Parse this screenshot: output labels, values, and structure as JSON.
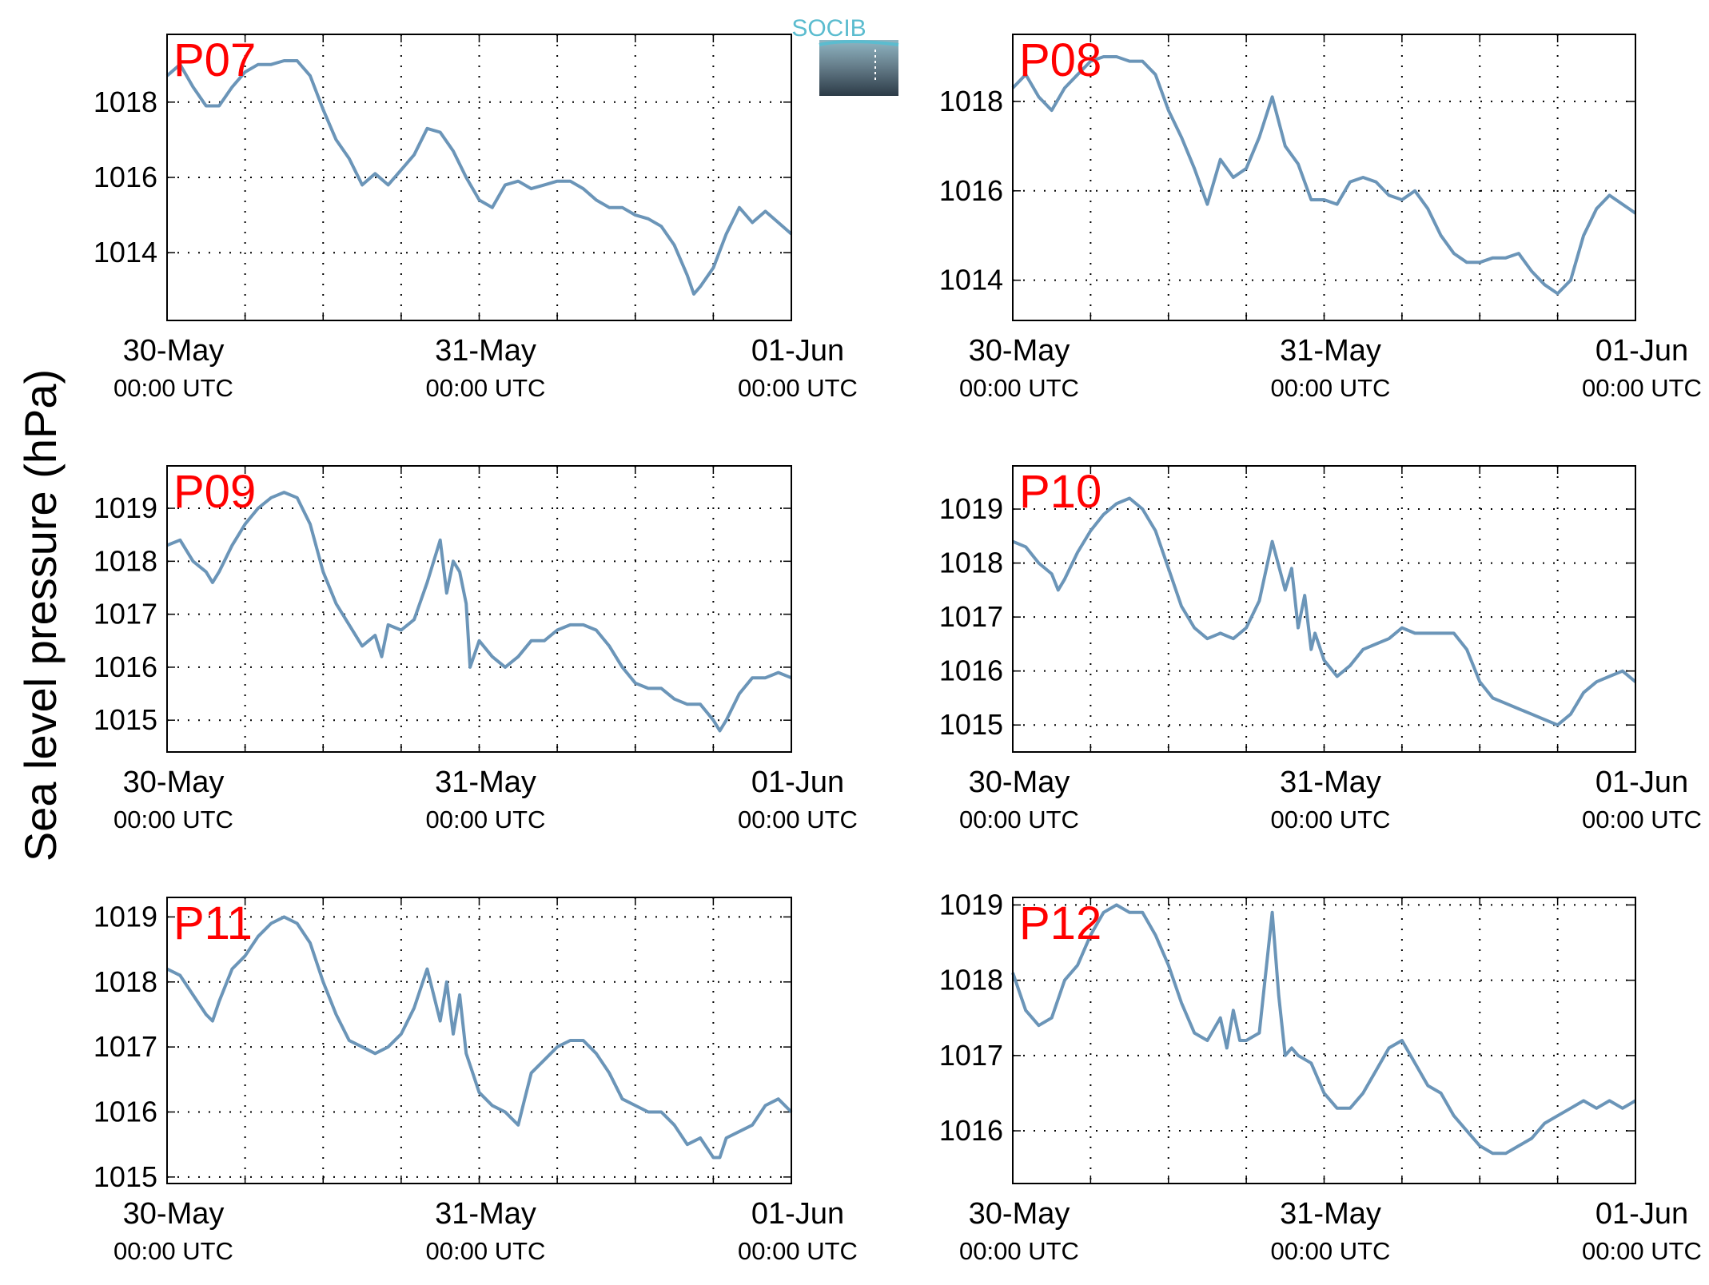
{
  "figure": {
    "ylabel": "Sea level pressure (hPa)",
    "logo_text": "SOCIB",
    "logo_color": "#5bbccf",
    "line_color": "#6b95b8",
    "label_color": "#ff0000"
  },
  "chart_data": [
    {
      "type": "line",
      "panel": "P07",
      "xlabel": "",
      "ylabel": "Sea level pressure (hPa)",
      "x_ticks": [
        {
          "date": "30-May",
          "time": "00:00 UTC"
        },
        {
          "date": "31-May",
          "time": "00:00 UTC"
        },
        {
          "date": "01-Jun",
          "time": "00:00 UTC"
        }
      ],
      "xlim": [
        "2015-05-30 00:00",
        "2015-06-01 00:00"
      ],
      "ylim": [
        1012.2,
        1019.8
      ],
      "yticks": [
        1014,
        1016,
        1018
      ],
      "grid": true,
      "series": [
        {
          "x": [
            0,
            1,
            2,
            3,
            3.5,
            4,
            5,
            6,
            7,
            8,
            9,
            10,
            11,
            12,
            13,
            14,
            15,
            16,
            17,
            18,
            19,
            20,
            21,
            22,
            23,
            24,
            25,
            26,
            27,
            28,
            29,
            30,
            31,
            32,
            33,
            34,
            35,
            36,
            37,
            38,
            39,
            40,
            40.5,
            41,
            42,
            43,
            44,
            45,
            46,
            47,
            48
          ],
          "y": [
            1018.7,
            1019.0,
            1018.4,
            1017.9,
            1017.9,
            1017.9,
            1018.4,
            1018.8,
            1019.0,
            1019.0,
            1019.1,
            1019.1,
            1018.7,
            1017.8,
            1017.0,
            1016.5,
            1015.8,
            1016.1,
            1015.8,
            1016.2,
            1016.6,
            1017.3,
            1017.2,
            1016.7,
            1016.0,
            1015.4,
            1015.2,
            1015.8,
            1015.9,
            1015.7,
            1015.8,
            1015.9,
            1015.9,
            1015.7,
            1015.4,
            1015.2,
            1015.2,
            1015.0,
            1014.9,
            1014.7,
            1014.2,
            1013.4,
            1012.9,
            1013.1,
            1013.6,
            1014.5,
            1015.2,
            1014.8,
            1015.1,
            1014.8,
            1014.5
          ]
        }
      ]
    },
    {
      "type": "line",
      "panel": "P08",
      "xlabel": "",
      "ylabel": "Sea level pressure (hPa)",
      "x_ticks": [
        {
          "date": "30-May",
          "time": "00:00 UTC"
        },
        {
          "date": "31-May",
          "time": "00:00 UTC"
        },
        {
          "date": "01-Jun",
          "time": "00:00 UTC"
        }
      ],
      "xlim": [
        "2015-05-30 00:00",
        "2015-06-01 00:00"
      ],
      "ylim": [
        1013.1,
        1019.5
      ],
      "yticks": [
        1014,
        1016,
        1018
      ],
      "grid": true,
      "series": [
        {
          "x": [
            0,
            1,
            2,
            3,
            4,
            5,
            6,
            7,
            8,
            9,
            10,
            11,
            12,
            13,
            14,
            15,
            16,
            17,
            18,
            19,
            20,
            21,
            22,
            23,
            24,
            25,
            26,
            27,
            28,
            29,
            30,
            31,
            32,
            33,
            34,
            35,
            36,
            37,
            38,
            39,
            40,
            41,
            42,
            43,
            44,
            45,
            46,
            47,
            48
          ],
          "y": [
            1018.3,
            1018.6,
            1018.1,
            1017.8,
            1018.3,
            1018.6,
            1018.9,
            1019.0,
            1019.0,
            1018.9,
            1018.9,
            1018.6,
            1017.8,
            1017.2,
            1016.5,
            1015.7,
            1016.7,
            1016.3,
            1016.5,
            1017.2,
            1018.1,
            1017.0,
            1016.6,
            1015.8,
            1015.8,
            1015.7,
            1016.2,
            1016.3,
            1016.2,
            1015.9,
            1015.8,
            1016.0,
            1015.6,
            1015.0,
            1014.6,
            1014.4,
            1014.4,
            1014.5,
            1014.5,
            1014.6,
            1014.2,
            1013.9,
            1013.7,
            1014.0,
            1015.0,
            1015.6,
            1015.9,
            1015.7,
            1015.5
          ]
        }
      ]
    },
    {
      "type": "line",
      "panel": "P09",
      "xlabel": "",
      "ylabel": "Sea level pressure (hPa)",
      "x_ticks": [
        {
          "date": "30-May",
          "time": "00:00 UTC"
        },
        {
          "date": "31-May",
          "time": "00:00 UTC"
        },
        {
          "date": "01-Jun",
          "time": "00:00 UTC"
        }
      ],
      "xlim": [
        "2015-05-30 00:00",
        "2015-06-01 00:00"
      ],
      "ylim": [
        1014.4,
        1019.8
      ],
      "yticks": [
        1015,
        1016,
        1017,
        1018,
        1019
      ],
      "grid": true,
      "series": [
        {
          "x": [
            0,
            1,
            2,
            3,
            3.5,
            4,
            5,
            6,
            7,
            8,
            9,
            10,
            11,
            12,
            13,
            14,
            15,
            16,
            16.5,
            17,
            18,
            19,
            20,
            21,
            21.5,
            22,
            22.5,
            23,
            23.3,
            24,
            25,
            26,
            27,
            28,
            29,
            30,
            31,
            32,
            33,
            34,
            35,
            36,
            37,
            38,
            39,
            40,
            41,
            42,
            42.5,
            43,
            44,
            45,
            46,
            47,
            48
          ],
          "y": [
            1018.3,
            1018.4,
            1018.0,
            1017.8,
            1017.6,
            1017.8,
            1018.3,
            1018.7,
            1019.0,
            1019.2,
            1019.3,
            1019.2,
            1018.7,
            1017.8,
            1017.2,
            1016.8,
            1016.4,
            1016.6,
            1016.2,
            1016.8,
            1016.7,
            1016.9,
            1017.6,
            1018.4,
            1017.4,
            1018.0,
            1017.8,
            1017.2,
            1016.0,
            1016.5,
            1016.2,
            1016.0,
            1016.2,
            1016.5,
            1016.5,
            1016.7,
            1016.8,
            1016.8,
            1016.7,
            1016.4,
            1016.0,
            1015.7,
            1015.6,
            1015.6,
            1015.4,
            1015.3,
            1015.3,
            1015.0,
            1014.8,
            1015.0,
            1015.5,
            1015.8,
            1015.8,
            1015.9,
            1015.8
          ]
        }
      ]
    },
    {
      "type": "line",
      "panel": "P10",
      "xlabel": "",
      "ylabel": "Sea level pressure (hPa)",
      "x_ticks": [
        {
          "date": "30-May",
          "time": "00:00 UTC"
        },
        {
          "date": "31-May",
          "time": "00:00 UTC"
        },
        {
          "date": "01-Jun",
          "time": "00:00 UTC"
        }
      ],
      "xlim": [
        "2015-05-30 00:00",
        "2015-06-01 00:00"
      ],
      "ylim": [
        1014.5,
        1019.8
      ],
      "yticks": [
        1015,
        1016,
        1017,
        1018,
        1019
      ],
      "grid": true,
      "series": [
        {
          "x": [
            0,
            1,
            2,
            3,
            3.5,
            4,
            5,
            6,
            7,
            8,
            9,
            10,
            11,
            12,
            13,
            14,
            15,
            16,
            17,
            18,
            19,
            20,
            21,
            21.5,
            22,
            22.5,
            23,
            23.3,
            24,
            25,
            26,
            27,
            28,
            29,
            30,
            31,
            32,
            33,
            34,
            35,
            36,
            37,
            38,
            39,
            40,
            41,
            42,
            43,
            44,
            45,
            46,
            47,
            48
          ],
          "y": [
            1018.4,
            1018.3,
            1018.0,
            1017.8,
            1017.5,
            1017.7,
            1018.2,
            1018.6,
            1018.9,
            1019.1,
            1019.2,
            1019.0,
            1018.6,
            1017.9,
            1017.2,
            1016.8,
            1016.6,
            1016.7,
            1016.6,
            1016.8,
            1017.3,
            1018.4,
            1017.5,
            1017.9,
            1016.8,
            1017.4,
            1016.4,
            1016.7,
            1016.2,
            1015.9,
            1016.1,
            1016.4,
            1016.5,
            1016.6,
            1016.8,
            1016.7,
            1016.7,
            1016.7,
            1016.7,
            1016.4,
            1015.8,
            1015.5,
            1015.4,
            1015.3,
            1015.2,
            1015.1,
            1015.0,
            1015.2,
            1015.6,
            1015.8,
            1015.9,
            1016.0,
            1015.8
          ]
        }
      ]
    },
    {
      "type": "line",
      "panel": "P11",
      "xlabel": "",
      "ylabel": "Sea level pressure (hPa)",
      "x_ticks": [
        {
          "date": "30-May",
          "time": "00:00 UTC"
        },
        {
          "date": "31-May",
          "time": "00:00 UTC"
        },
        {
          "date": "01-Jun",
          "time": "00:00 UTC"
        }
      ],
      "xlim": [
        "2015-05-30 00:00",
        "2015-06-01 00:00"
      ],
      "ylim": [
        1014.9,
        1019.3
      ],
      "yticks": [
        1015,
        1016,
        1017,
        1018,
        1019
      ],
      "grid": true,
      "series": [
        {
          "x": [
            0,
            1,
            2,
            3,
            3.5,
            4,
            5,
            6,
            7,
            8,
            9,
            10,
            11,
            12,
            13,
            14,
            15,
            16,
            17,
            18,
            19,
            20,
            21,
            21.5,
            22,
            22.5,
            23,
            23.5,
            24,
            25,
            26,
            27,
            27.5,
            28,
            29,
            30,
            31,
            32,
            33,
            34,
            35,
            36,
            37,
            38,
            39,
            40,
            41,
            42,
            42.5,
            43,
            44,
            45,
            46,
            47,
            48
          ],
          "y": [
            1018.2,
            1018.1,
            1017.8,
            1017.5,
            1017.4,
            1017.7,
            1018.2,
            1018.4,
            1018.7,
            1018.9,
            1019.0,
            1018.9,
            1018.6,
            1018.0,
            1017.5,
            1017.1,
            1017.0,
            1016.9,
            1017.0,
            1017.2,
            1017.6,
            1018.2,
            1017.4,
            1018.0,
            1017.2,
            1017.8,
            1016.9,
            1016.6,
            1016.3,
            1016.1,
            1016.0,
            1015.8,
            1016.2,
            1016.6,
            1016.8,
            1017.0,
            1017.1,
            1017.1,
            1016.9,
            1016.6,
            1016.2,
            1016.1,
            1016.0,
            1016.0,
            1015.8,
            1015.5,
            1015.6,
            1015.3,
            1015.3,
            1015.6,
            1015.7,
            1015.8,
            1016.1,
            1016.2,
            1016.0
          ]
        }
      ]
    },
    {
      "type": "line",
      "panel": "P12",
      "xlabel": "",
      "ylabel": "Sea level pressure (hPa)",
      "x_ticks": [
        {
          "date": "30-May",
          "time": "00:00 UTC"
        },
        {
          "date": "31-May",
          "time": "00:00 UTC"
        },
        {
          "date": "01-Jun",
          "time": "00:00 UTC"
        }
      ],
      "xlim": [
        "2015-05-30 00:00",
        "2015-06-01 00:00"
      ],
      "ylim": [
        1015.3,
        1019.1
      ],
      "yticks": [
        1016,
        1017,
        1018,
        1019
      ],
      "grid": true,
      "series": [
        {
          "x": [
            0,
            1,
            2,
            3,
            4,
            5,
            6,
            7,
            8,
            9,
            10,
            11,
            12,
            13,
            14,
            15,
            16,
            16.5,
            17,
            17.5,
            18,
            19,
            20,
            20.5,
            21,
            21.5,
            22,
            23,
            24,
            25,
            26,
            27,
            28,
            29,
            30,
            31,
            32,
            33,
            34,
            35,
            36,
            37,
            38,
            39,
            40,
            41,
            42,
            43,
            44,
            45,
            46,
            47,
            48
          ],
          "y": [
            1018.1,
            1017.6,
            1017.4,
            1017.5,
            1018.0,
            1018.2,
            1018.6,
            1018.9,
            1019.0,
            1018.9,
            1018.9,
            1018.6,
            1018.2,
            1017.7,
            1017.3,
            1017.2,
            1017.5,
            1017.1,
            1017.6,
            1017.2,
            1017.2,
            1017.3,
            1018.9,
            1017.8,
            1017.0,
            1017.1,
            1017.0,
            1016.9,
            1016.5,
            1016.3,
            1016.3,
            1016.5,
            1016.8,
            1017.1,
            1017.2,
            1016.9,
            1016.6,
            1016.5,
            1016.2,
            1016.0,
            1015.8,
            1015.7,
            1015.7,
            1015.8,
            1015.9,
            1016.1,
            1016.2,
            1016.3,
            1016.4,
            1016.3,
            1016.4,
            1016.3,
            1016.4
          ]
        }
      ]
    }
  ]
}
